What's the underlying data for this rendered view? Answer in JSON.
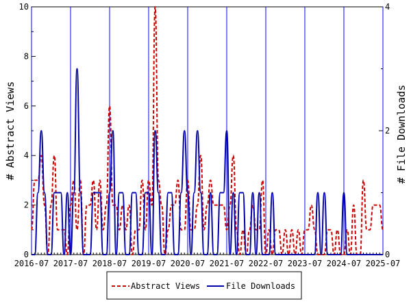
{
  "chart_data": {
    "type": "line",
    "x_ticks": [
      "2016-07",
      "2017-07",
      "2018-07",
      "2019-07",
      "2020-07",
      "2021-07",
      "2022-07",
      "2023-07",
      "2024-07",
      "2025-07"
    ],
    "ylabel_left": "# Abstract Views",
    "ylabel_right": "# File Downloads",
    "ylim_left": [
      0,
      10
    ],
    "ylim_right": [
      0,
      4
    ],
    "yticks_left": [
      "0",
      "2",
      "4",
      "6",
      "8",
      "10"
    ],
    "yticks_right": [
      "0",
      "2",
      "4"
    ],
    "legend_position": "bottom-center",
    "series": [
      {
        "name": "Abstract Views",
        "axis": "left",
        "color": "#cc0000",
        "style": "dashed",
        "x": [
          "2016-07",
          "2016-08",
          "2016-09",
          "2016-10",
          "2016-11",
          "2016-12",
          "2017-01",
          "2017-02",
          "2017-03",
          "2017-04",
          "2017-05",
          "2017-06",
          "2017-07",
          "2017-08",
          "2017-09",
          "2017-10",
          "2017-11",
          "2017-12",
          "2018-01",
          "2018-02",
          "2018-03",
          "2018-04",
          "2018-05",
          "2018-06",
          "2018-07",
          "2018-08",
          "2018-09",
          "2018-10",
          "2018-11",
          "2018-12",
          "2019-01",
          "2019-02",
          "2019-03",
          "2019-04",
          "2019-05",
          "2019-06",
          "2019-07",
          "2019-08",
          "2019-09",
          "2019-10",
          "2019-11",
          "2019-12",
          "2020-01",
          "2020-02",
          "2020-03",
          "2020-04",
          "2020-05",
          "2020-06",
          "2020-07",
          "2020-08",
          "2020-09",
          "2020-10",
          "2020-11",
          "2020-12",
          "2021-01",
          "2021-02",
          "2021-03",
          "2021-04",
          "2021-05",
          "2021-06",
          "2021-07",
          "2021-08",
          "2021-09",
          "2021-10",
          "2021-11",
          "2021-12",
          "2022-01",
          "2022-02",
          "2022-03",
          "2022-04",
          "2022-05",
          "2022-06",
          "2022-07",
          "2022-08",
          "2022-09",
          "2022-10",
          "2022-11",
          "2022-12",
          "2023-01",
          "2023-02",
          "2023-03",
          "2023-04",
          "2023-05",
          "2023-06",
          "2023-07",
          "2023-08",
          "2023-09",
          "2023-10",
          "2023-11",
          "2023-12",
          "2024-01",
          "2024-02",
          "2024-03",
          "2024-04",
          "2024-05",
          "2024-06",
          "2024-07",
          "2024-08",
          "2024-09",
          "2024-10",
          "2024-11",
          "2024-12",
          "2025-01",
          "2025-02",
          "2025-03",
          "2025-04",
          "2025-05",
          "2025-06",
          "2025-07"
        ],
        "values": [
          1,
          3,
          3,
          4,
          2,
          0,
          2,
          4,
          1,
          1,
          1,
          0,
          2,
          3,
          1,
          3,
          0,
          2,
          2,
          3,
          1,
          3,
          1,
          2,
          6,
          2,
          2,
          1,
          2,
          1,
          2,
          0,
          1,
          1,
          3,
          1,
          3,
          2,
          10,
          3,
          2,
          0,
          1,
          2,
          2,
          3,
          1,
          1,
          3,
          1,
          1,
          2,
          4,
          1,
          2,
          3,
          2,
          2,
          2,
          2,
          1,
          2,
          4,
          1,
          0,
          1,
          0,
          1,
          2,
          1,
          1,
          3,
          0,
          1,
          0,
          1,
          1,
          0,
          1,
          0,
          1,
          0,
          1,
          0,
          1,
          1,
          2,
          1,
          0,
          0,
          0,
          1,
          1,
          0,
          1,
          0,
          0,
          1,
          0,
          2,
          0,
          0,
          3,
          1,
          1,
          2,
          2,
          2,
          1
        ]
      },
      {
        "name": "File Downloads",
        "axis": "right",
        "color": "#0000aa",
        "style": "solid",
        "x": [
          "2016-07",
          "2016-08",
          "2016-09",
          "2016-10",
          "2016-11",
          "2016-12",
          "2017-01",
          "2017-02",
          "2017-03",
          "2017-04",
          "2017-05",
          "2017-06",
          "2017-07",
          "2017-08",
          "2017-09",
          "2017-10",
          "2017-11",
          "2017-12",
          "2018-01",
          "2018-02",
          "2018-03",
          "2018-04",
          "2018-05",
          "2018-06",
          "2018-07",
          "2018-08",
          "2018-09",
          "2018-10",
          "2018-11",
          "2018-12",
          "2019-01",
          "2019-02",
          "2019-03",
          "2019-04",
          "2019-05",
          "2019-06",
          "2019-07",
          "2019-08",
          "2019-09",
          "2019-10",
          "2019-11",
          "2019-12",
          "2020-01",
          "2020-02",
          "2020-03",
          "2020-04",
          "2020-05",
          "2020-06",
          "2020-07",
          "2020-08",
          "2020-09",
          "2020-10",
          "2020-11",
          "2020-12",
          "2021-01",
          "2021-02",
          "2021-03",
          "2021-04",
          "2021-05",
          "2021-06",
          "2021-07",
          "2021-08",
          "2021-09",
          "2021-10",
          "2021-11",
          "2021-12",
          "2022-01",
          "2022-02",
          "2022-03",
          "2022-04",
          "2022-05",
          "2022-06",
          "2022-07",
          "2022-08",
          "2022-09",
          "2022-10",
          "2022-11",
          "2022-12",
          "2023-01",
          "2023-02",
          "2023-03",
          "2023-04",
          "2023-05",
          "2023-06",
          "2023-07",
          "2023-08",
          "2023-09",
          "2023-10",
          "2023-11",
          "2023-12",
          "2024-01",
          "2024-02",
          "2024-03",
          "2024-04",
          "2024-05",
          "2024-06",
          "2024-07",
          "2024-08",
          "2024-09",
          "2024-10",
          "2024-11",
          "2024-12",
          "2025-01",
          "2025-02",
          "2025-03",
          "2025-04",
          "2025-05",
          "2025-06",
          "2025-07"
        ],
        "values": [
          0,
          0,
          1,
          2,
          1,
          0,
          0,
          1,
          1,
          1,
          0,
          1,
          0,
          1,
          3,
          1,
          0,
          0,
          0,
          1,
          1,
          1,
          0,
          0,
          1,
          2,
          0,
          1,
          1,
          0,
          0,
          1,
          1,
          0,
          0,
          1,
          1,
          0,
          2,
          1,
          0,
          0,
          1,
          1,
          0,
          0,
          1,
          2,
          1,
          0,
          1,
          2,
          1,
          0,
          0,
          1,
          0,
          0,
          1,
          1,
          2,
          0,
          1,
          0,
          1,
          1,
          0,
          0,
          1,
          0,
          1,
          0,
          0,
          0,
          1,
          0,
          0,
          0,
          0,
          0,
          0,
          0,
          0,
          0,
          0,
          0,
          0,
          0,
          1,
          0,
          1,
          0,
          0,
          0,
          0,
          0,
          1,
          0,
          0,
          0,
          0,
          0,
          0,
          0,
          0,
          0,
          0,
          0,
          0
        ]
      }
    ]
  }
}
